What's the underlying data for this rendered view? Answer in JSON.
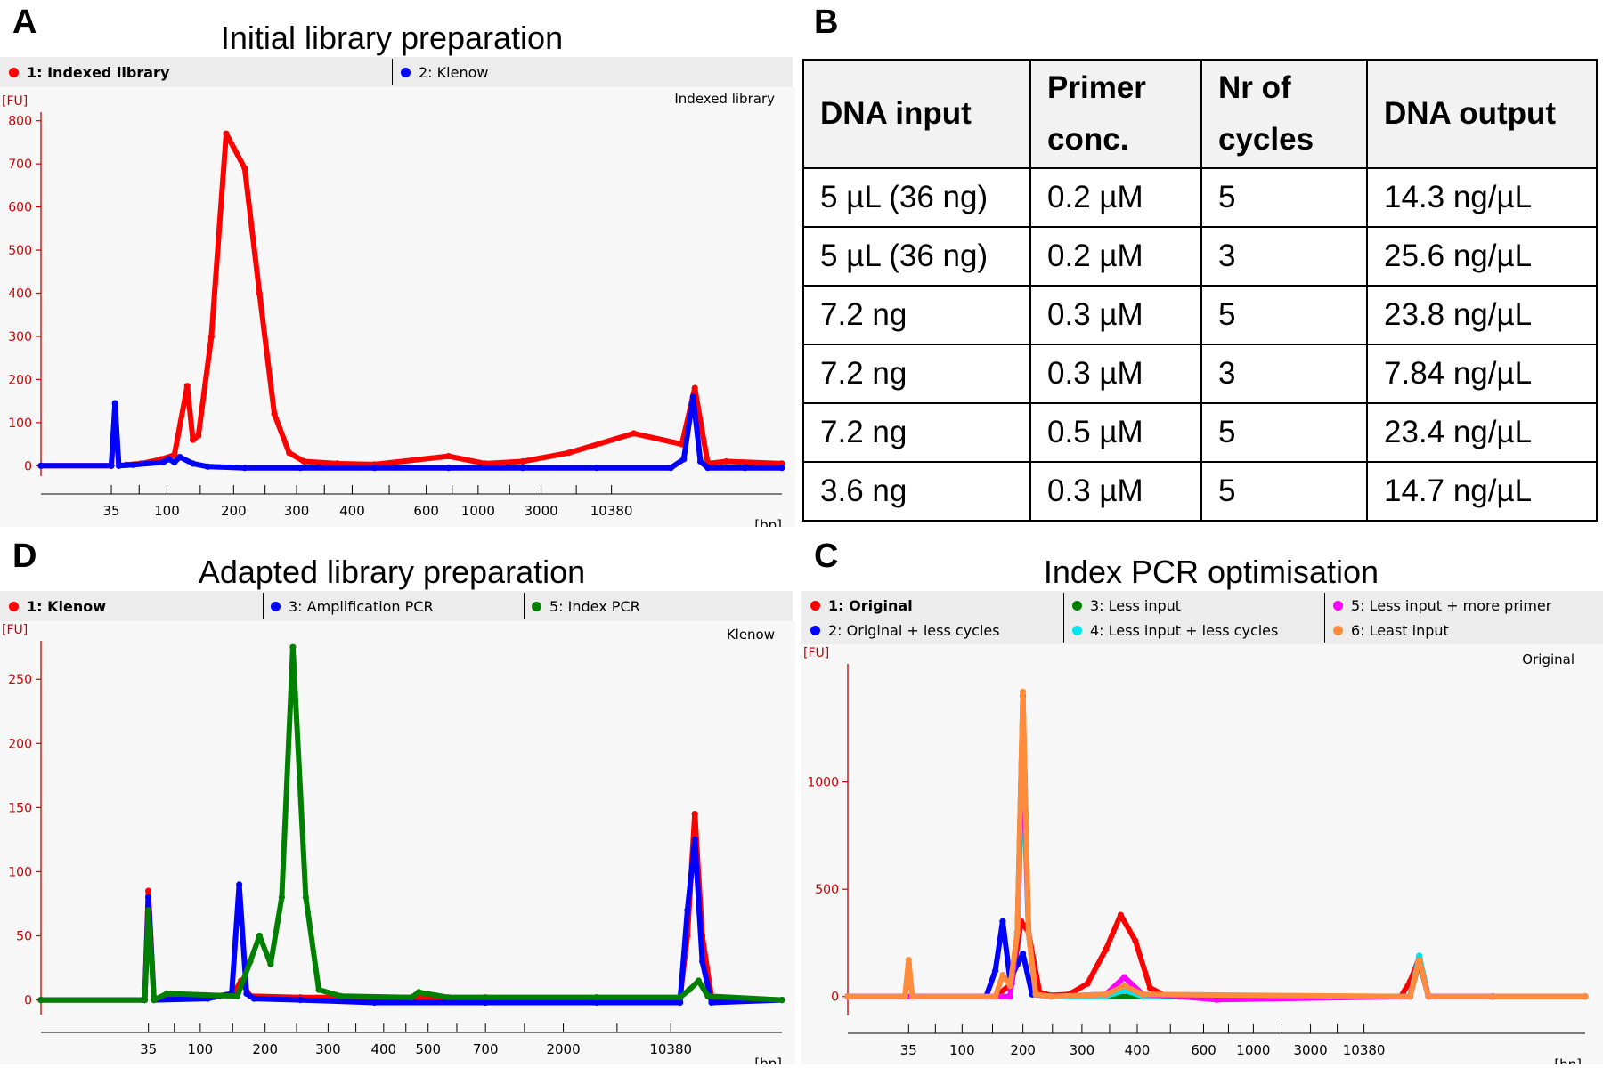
{
  "panels": [
    {
      "letter": "A",
      "title": "Initial library preparation",
      "legend": [
        {
          "label": "1: Indexed library",
          "color": "#ff0000",
          "bold": true
        },
        {
          "label": "2: Klenow",
          "color": "#0000ff",
          "bold": false
        }
      ],
      "corner_label": "Indexed library",
      "y_unit": "[FU]",
      "x_unit": "[bp]"
    },
    {
      "letter": "B"
    },
    {
      "letter": "D",
      "title": "Adapted library preparation",
      "legend": [
        {
          "label": "1: Klenow",
          "color": "#ff0000",
          "bold": true
        },
        {
          "label": "3: Amplification PCR",
          "color": "#0000ff",
          "bold": false
        },
        {
          "label": "5: Index PCR",
          "color": "#008000",
          "bold": false
        }
      ],
      "corner_label": "Klenow",
      "y_unit": "[FU]",
      "x_unit": "[bp]"
    },
    {
      "letter": "C",
      "title": "Index PCR optimisation",
      "legend": [
        {
          "label": "1: Original",
          "color": "#ff0000",
          "bold": true
        },
        {
          "label": "2: Original + less cycles",
          "color": "#0000ff",
          "bold": false
        },
        {
          "label": "3: Less input",
          "color": "#008000",
          "bold": false
        },
        {
          "label": "4: Less input + less cycles",
          "color": "#00e5ee",
          "bold": false
        },
        {
          "label": "5: Less input + more primer",
          "color": "#ff00ff",
          "bold": false
        },
        {
          "label": "6: Least input",
          "color": "#ff8c3c",
          "bold": false
        }
      ],
      "corner_label": "Original",
      "y_unit": "[FU]",
      "x_unit": "[bp]"
    }
  ],
  "table": {
    "headers": [
      [
        "DNA input"
      ],
      [
        "Primer",
        "conc."
      ],
      [
        "Nr of",
        "cycles"
      ],
      [
        "DNA output"
      ]
    ],
    "rows": [
      [
        "5 µL (36 ng)",
        "0.2 µM",
        "5",
        "14.3 ng/µL"
      ],
      [
        "5 µL (36 ng)",
        "0.2 µM",
        "3",
        "25.6 ng/µL"
      ],
      [
        "7.2 ng",
        "0.3 µM",
        "5",
        "23.8 ng/µL"
      ],
      [
        "7.2 ng",
        "0.3 µM",
        "3",
        "7.84 ng/µL"
      ],
      [
        "7.2 ng",
        "0.5 µM",
        "5",
        "23.4 ng/µL"
      ],
      [
        "3.6 ng",
        "0.3 µM",
        "5",
        "14.7 ng/µL"
      ]
    ]
  },
  "chart_data": [
    {
      "type": "line",
      "title": "Initial library preparation",
      "ylabel": "[FU]",
      "xlabel": "[bp]",
      "ylim": [
        -20,
        820
      ],
      "yticks": [
        0,
        100,
        200,
        300,
        400,
        500,
        600,
        700,
        800
      ],
      "xticks": [
        "35",
        "100",
        "200",
        "300",
        "400",
        "600",
        "1000",
        "3000",
        "10380"
      ],
      "legend": "top-left",
      "series": [
        {
          "name": "1: Indexed library",
          "color": "#ff0000",
          "x": [
            0,
            3.8,
            4.0,
            4.2,
            4.6,
            5.4,
            6.5,
            7.2,
            7.9,
            8.2,
            8.5,
            9.2,
            10.0,
            11.0,
            11.8,
            12.6,
            13.4,
            14.2,
            16.0,
            18.0,
            22.0,
            24.0,
            26.0,
            28.5,
            32.0,
            34.6,
            35.3,
            36.0,
            37.0,
            40.0
          ],
          "y": [
            0,
            0,
            120,
            0,
            2,
            5,
            15,
            25,
            185,
            60,
            70,
            300,
            770,
            690,
            400,
            120,
            30,
            10,
            5,
            3,
            22,
            5,
            10,
            30,
            75,
            50,
            180,
            5,
            10,
            5
          ]
        },
        {
          "name": "2: Klenow",
          "color": "#0000ff",
          "x": [
            0,
            3.8,
            4.0,
            4.2,
            5.0,
            6.6,
            6.9,
            7.2,
            7.5,
            8.2,
            9.0,
            11.0,
            14.0,
            18.0,
            22.0,
            26.0,
            30.0,
            34.0,
            34.7,
            35.2,
            35.6,
            36.0,
            38.0,
            40.0
          ],
          "y": [
            0,
            0,
            145,
            0,
            2,
            8,
            15,
            8,
            20,
            5,
            -2,
            -5,
            -5,
            -5,
            -5,
            -5,
            -5,
            -5,
            15,
            160,
            10,
            -5,
            -5,
            -5
          ]
        }
      ]
    },
    {
      "type": "line",
      "title": "Adapted library preparation",
      "ylabel": "[FU]",
      "xlabel": "[bp]",
      "ylim": [
        -10,
        280
      ],
      "yticks": [
        0,
        50,
        100,
        150,
        200,
        250
      ],
      "xticks": [
        "35",
        "100",
        "200",
        "300",
        "400",
        "500",
        "700",
        "2000",
        "10380"
      ],
      "legend": "top-left",
      "series": [
        {
          "name": "1: Klenow",
          "color": "#ff0000",
          "x": [
            0,
            5.6,
            5.8,
            6.1,
            7.0,
            9.0,
            10.4,
            10.8,
            11.3,
            14.0,
            18.0,
            24.0,
            30.0,
            34.5,
            34.9,
            35.3,
            35.7,
            36.2,
            40.0
          ],
          "y": [
            0,
            0,
            85,
            0,
            2,
            2,
            5,
            15,
            3,
            2,
            2,
            2,
            2,
            2,
            50,
            145,
            50,
            2,
            0
          ]
        },
        {
          "name": "3: Amplification PCR",
          "color": "#0000ff",
          "x": [
            0,
            5.6,
            5.8,
            6.1,
            9.0,
            10.3,
            10.7,
            11.1,
            11.5,
            14.0,
            18.0,
            24.0,
            30.0,
            34.5,
            34.9,
            35.3,
            35.7,
            36.2,
            40.0
          ],
          "y": [
            0,
            0,
            80,
            0,
            1,
            5,
            90,
            5,
            1,
            0,
            -2,
            -2,
            -2,
            -2,
            70,
            125,
            30,
            -2,
            0
          ]
        },
        {
          "name": "5: Index PCR",
          "color": "#008000",
          "x": [
            0,
            5.6,
            5.8,
            6.1,
            6.8,
            10.6,
            11.3,
            11.8,
            12.4,
            13.0,
            13.6,
            14.3,
            15.0,
            16.2,
            20.0,
            20.4,
            22.0,
            30.0,
            34.5,
            35.0,
            35.5,
            36.0,
            40.0
          ],
          "y": [
            0,
            0,
            70,
            0,
            5,
            3,
            30,
            50,
            28,
            80,
            275,
            80,
            8,
            3,
            2,
            6,
            2,
            2,
            2,
            8,
            15,
            3,
            0
          ]
        }
      ]
    },
    {
      "type": "line",
      "title": "Index PCR optimisation",
      "ylabel": "[FU]",
      "xlabel": "[bp]",
      "ylim": [
        -80,
        1550
      ],
      "yticks": [
        0,
        500,
        1000
      ],
      "xticks": [
        "35",
        "100",
        "200",
        "300",
        "400",
        "600",
        "1000",
        "3000",
        "10380"
      ],
      "legend": "top-left",
      "series": [
        {
          "name": "1: Original",
          "color": "#ff0000",
          "x": [
            0,
            3.1,
            3.3,
            3.5,
            8.0,
            8.9,
            9.4,
            9.8,
            10.4,
            11.0,
            12.0,
            13.0,
            14.0,
            14.8,
            15.6,
            16.4,
            17.2,
            18.0,
            22.0,
            26.0,
            30.0,
            30.5,
            31.0,
            31.5,
            35.0,
            40.0
          ],
          "y": [
            0,
            0,
            150,
            0,
            0,
            60,
            350,
            300,
            20,
            5,
            10,
            60,
            220,
            380,
            260,
            40,
            5,
            0,
            0,
            0,
            0,
            70,
            180,
            0,
            0,
            0
          ]
        },
        {
          "name": "2: Original + less cycles",
          "color": "#0000ff",
          "x": [
            0,
            7.5,
            8.0,
            8.4,
            8.8,
            9.2,
            9.5,
            10.0,
            11.0,
            30.5,
            31.0,
            31.5,
            35.0
          ],
          "y": [
            0,
            0,
            120,
            350,
            80,
            150,
            200,
            10,
            0,
            0,
            180,
            0,
            0
          ]
        },
        {
          "name": "3: Less input",
          "color": "#008000",
          "x": [
            0,
            8.8,
            9.2,
            9.5,
            9.8,
            10.2,
            11.0,
            30.5,
            31.0,
            31.5,
            35.0
          ],
          "y": [
            0,
            0,
            300,
            1400,
            300,
            10,
            0,
            0,
            160,
            0,
            0
          ]
        },
        {
          "name": "4: Less input + less cycles",
          "color": "#00e5ee",
          "x": [
            0,
            8.8,
            9.2,
            9.5,
            9.8,
            10.2,
            11.0,
            14.0,
            15.0,
            16.0,
            30.5,
            31.0,
            31.5,
            35.0
          ],
          "y": [
            0,
            0,
            300,
            1100,
            300,
            10,
            0,
            0,
            30,
            0,
            0,
            190,
            0,
            0
          ]
        },
        {
          "name": "5: Less input + more primer",
          "color": "#ff00ff",
          "x": [
            0,
            8.8,
            9.2,
            9.5,
            9.8,
            10.2,
            11.0,
            14.0,
            15.0,
            16.0,
            18.0,
            20.0,
            30.5,
            31.0,
            31.5,
            35.0
          ],
          "y": [
            0,
            0,
            300,
            1250,
            300,
            10,
            0,
            10,
            90,
            10,
            0,
            -15,
            0,
            170,
            0,
            0
          ]
        },
        {
          "name": "6: Least input",
          "color": "#ff8c3c",
          "x": [
            0,
            3.1,
            3.3,
            3.5,
            8.0,
            8.4,
            8.8,
            9.2,
            9.5,
            9.8,
            10.2,
            11.0,
            14.0,
            15.0,
            16.0,
            30.5,
            31.0,
            31.5,
            35.0,
            40.0
          ],
          "y": [
            0,
            0,
            170,
            0,
            0,
            100,
            50,
            300,
            1420,
            300,
            10,
            0,
            10,
            50,
            10,
            0,
            170,
            0,
            0,
            0
          ]
        }
      ]
    }
  ]
}
